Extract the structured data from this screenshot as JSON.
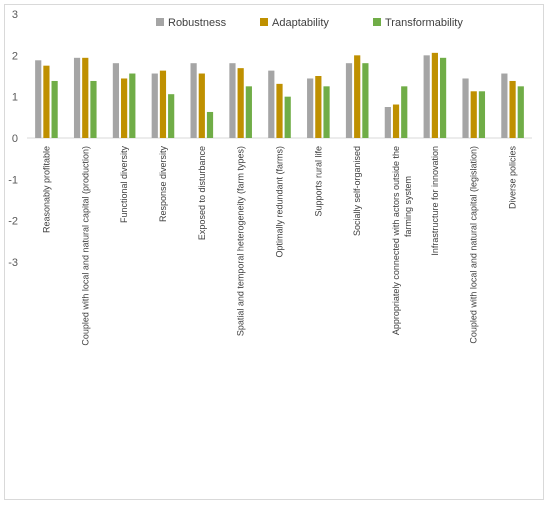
{
  "chart_data": {
    "type": "bar",
    "title": "",
    "xlabel": "",
    "ylabel": "",
    "ylim": [
      -3,
      3
    ],
    "yticks": [
      -3,
      -2,
      -1,
      0,
      1,
      2,
      3
    ],
    "grid": false,
    "legend_position": "top-right",
    "categories": [
      "Reasonably profitable",
      "Coupled with local and natural capital (production)",
      "Functional diversity",
      "Response diversity",
      "Exposed to disturbance",
      "Spatial and temporal heterogeneity (farm types)",
      "Optimally redundant (farms)",
      "Supports rural life",
      "Socially self-organised",
      "Appropriately connected with actors outside the farming system",
      "Infrastructure for innovation",
      "Coupled with local and natural capital (legislation)",
      "Diverse policies"
    ],
    "series": [
      {
        "name": "Robustness",
        "color": "#a5a5a5",
        "values": [
          1.88,
          1.94,
          1.81,
          1.56,
          1.81,
          1.81,
          1.63,
          1.44,
          1.81,
          0.75,
          2.0,
          1.44,
          1.56
        ]
      },
      {
        "name": "Adaptability",
        "color": "#bf9000",
        "values": [
          1.75,
          1.94,
          1.44,
          1.63,
          1.56,
          1.69,
          1.31,
          1.5,
          2.0,
          0.81,
          2.06,
          1.13,
          1.38
        ]
      },
      {
        "name": "Transformability",
        "color": "#70ad47",
        "values": [
          1.38,
          1.38,
          1.56,
          1.06,
          0.63,
          1.25,
          1.0,
          1.25,
          1.81,
          1.25,
          1.94,
          1.13,
          1.25
        ]
      }
    ]
  }
}
